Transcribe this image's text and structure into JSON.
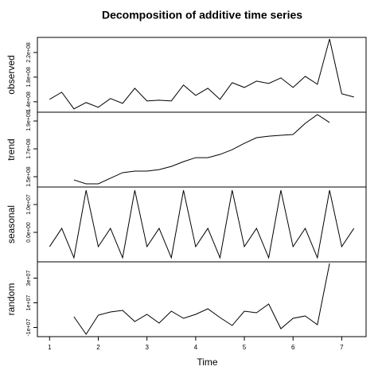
{
  "chart_data": [
    {
      "type": "line",
      "title": "Decomposition of additive time series",
      "y_label": "observed",
      "color": "#000000",
      "x": [
        1,
        1.25,
        1.5,
        1.75,
        2,
        2.25,
        2.5,
        2.75,
        3,
        3.25,
        3.5,
        3.75,
        4,
        4.25,
        4.5,
        4.75,
        5,
        5.25,
        5.5,
        5.75,
        6,
        6.25,
        6.5,
        6.75,
        7,
        7.25
      ],
      "values": [
        143900000,
        155500000,
        128400000,
        138700000,
        131000000,
        145200000,
        137400000,
        161900000,
        141300000,
        142600000,
        141300000,
        167100000,
        150300000,
        161900000,
        143900000,
        171000000,
        163200000,
        173500000,
        169700000,
        178700000,
        163200000,
        181300000,
        168400000,
        241900000,
        152900000,
        147700000
      ],
      "xlim": [
        0.75,
        7.5
      ],
      "ylim": [
        123000000,
        244500000
      ],
      "yticks": [
        {
          "value": 140000000,
          "label": "1.4e+08"
        },
        {
          "value": 180000000,
          "label": "1.8e+08"
        },
        {
          "value": 220000000,
          "label": "2.2e+08"
        }
      ]
    },
    {
      "type": "line",
      "y_label": "trend",
      "color": "#000000",
      "x": [
        1,
        1.25,
        1.5,
        1.75,
        2,
        2.25,
        2.5,
        2.75,
        3,
        3.25,
        3.5,
        3.75,
        4,
        4.25,
        4.5,
        4.75,
        5,
        5.25,
        5.5,
        5.75,
        6,
        6.25,
        6.5,
        6.75,
        7,
        7.25
      ],
      "values": [
        null,
        null,
        147700000,
        144900000,
        144900000,
        148900000,
        152900000,
        154000000,
        154000000,
        155100000,
        157400000,
        160800000,
        163700000,
        163700000,
        166000000,
        169400000,
        174000000,
        178000000,
        179100000,
        179700000,
        180300000,
        188300000,
        194600000,
        188900000,
        null,
        null
      ],
      "xlim": [
        0.75,
        7.5
      ],
      "ylim": [
        142600000,
        196300000
      ],
      "yticks": [
        {
          "value": 150000000,
          "label": "1.5e+08"
        },
        {
          "value": 170000000,
          "label": "1.7e+08"
        },
        {
          "value": 190000000,
          "label": "1.9e+08"
        }
      ]
    },
    {
      "type": "line",
      "y_label": "seasonal",
      "color": "#000000",
      "x": [
        1,
        1.25,
        1.5,
        1.75,
        2,
        2.25,
        2.5,
        2.75,
        3,
        3.25,
        3.5,
        3.75,
        4,
        4.25,
        4.5,
        4.75,
        5,
        5.25,
        5.5,
        5.75,
        6,
        6.25,
        6.5,
        6.75,
        7,
        7.25
      ],
      "values": [
        -5140000,
        1430000,
        -9140000,
        15140000,
        -5140000,
        1430000,
        -9140000,
        15140000,
        -5140000,
        1430000,
        -9140000,
        15140000,
        -5140000,
        1430000,
        -9140000,
        15140000,
        -5140000,
        1430000,
        -9140000,
        15140000,
        -5140000,
        1430000,
        -9140000,
        15140000,
        -5140000,
        1430000
      ],
      "xlim": [
        0.75,
        7.5
      ],
      "ylim": [
        -10600000,
        16300000
      ],
      "yticks": [
        {
          "value": 0,
          "label": "0.0e+00"
        },
        {
          "value": 10000000,
          "label": "1.0e+07"
        }
      ]
    },
    {
      "type": "line",
      "y_label": "random",
      "x_label": "Time",
      "color": "#000000",
      "x": [
        1,
        1.25,
        1.5,
        1.75,
        2,
        2.25,
        2.5,
        2.75,
        3,
        3.25,
        3.5,
        3.75,
        4,
        4.25,
        4.5,
        4.75,
        5,
        5.25,
        5.5,
        5.75,
        6,
        6.25,
        6.5,
        6.75,
        7,
        7.25
      ],
      "values": [
        null,
        null,
        -1290000,
        -15480000,
        0,
        2580000,
        3870000,
        -5160000,
        650000,
        -6450000,
        3230000,
        -2580000,
        650000,
        5160000,
        -1940000,
        -8390000,
        3230000,
        1940000,
        9030000,
        -10970000,
        -2580000,
        -650000,
        -7740000,
        41900000,
        null,
        null
      ],
      "xlim": [
        0.75,
        7.5
      ],
      "ylim": [
        -17400000,
        43200000
      ],
      "xticks": [
        1,
        2,
        3,
        4,
        5,
        6,
        7
      ],
      "yticks": [
        {
          "value": -10000000,
          "label": "-1e+07"
        },
        {
          "value": 10000000,
          "label": "1e+07"
        },
        {
          "value": 30000000,
          "label": "3e+07"
        }
      ]
    }
  ]
}
